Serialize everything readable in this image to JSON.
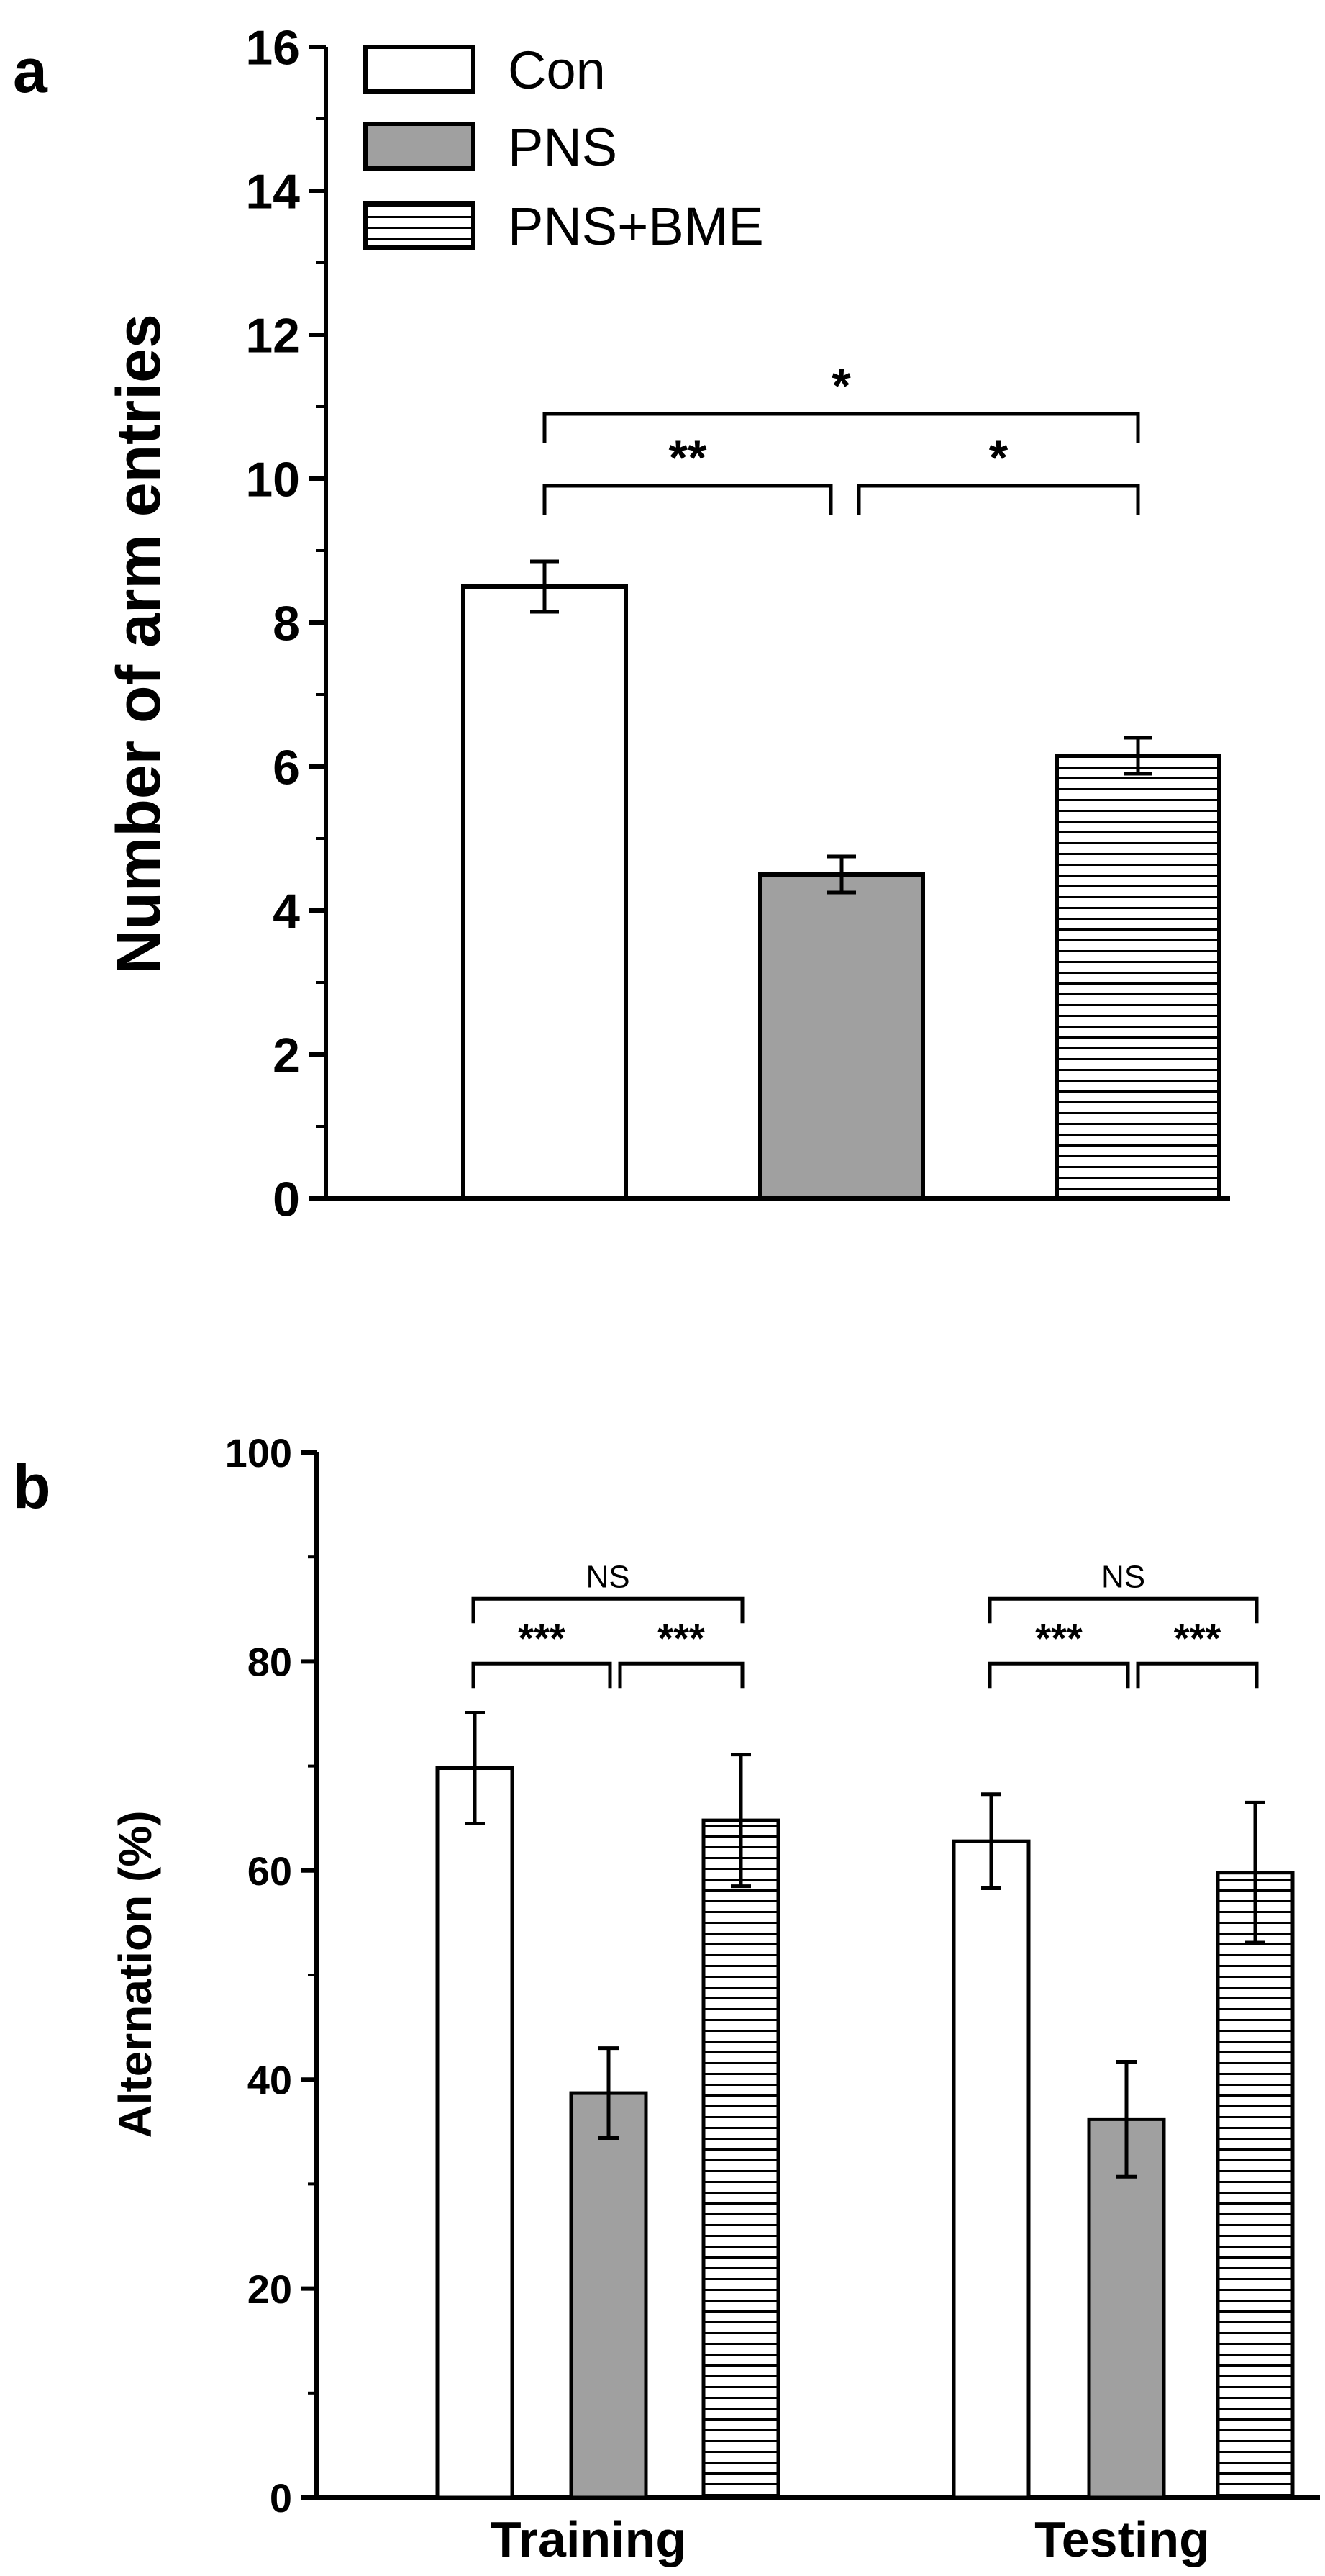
{
  "colors": {
    "con": "#ffffff",
    "pns": "#a0a0a0",
    "stripe": "#000000",
    "axis": "#000000"
  },
  "legend": [
    {
      "name": "Con",
      "pattern": "empty"
    },
    {
      "name": "PNS",
      "pattern": "gray"
    },
    {
      "name": "PNS+BME",
      "pattern": "stripes"
    }
  ],
  "chart_data": [
    {
      "panel_label": "a",
      "type": "bar",
      "ylabel": "Number of arm entries",
      "ylim": [
        0,
        16
      ],
      "yticks": [
        "0",
        "2",
        "4",
        "6",
        "8",
        "10",
        "12",
        "14",
        "16"
      ],
      "categories": [
        "Con",
        "PNS",
        "PNS+BME"
      ],
      "values": [
        8.5,
        4.5,
        6.15
      ],
      "errors": [
        0.35,
        0.25,
        0.25
      ],
      "annotations": [
        {
          "from": 0,
          "to": 1,
          "y": 9.9,
          "label": "**"
        },
        {
          "from": 1,
          "to": 2,
          "y": 9.9,
          "label": "*"
        },
        {
          "from": 0,
          "to": 2,
          "y": 10.9,
          "label": "*"
        }
      ]
    },
    {
      "panel_label": "b",
      "type": "bar",
      "ylabel": "Alternation (%)",
      "ylim": [
        0,
        100
      ],
      "yticks": [
        "0",
        "20",
        "40",
        "60",
        "80",
        "100"
      ],
      "categories": [
        "Training",
        "Testing"
      ],
      "series": [
        {
          "name": "Con",
          "values": [
            69.8,
            62.8
          ],
          "errors": [
            5.3,
            4.5
          ]
        },
        {
          "name": "PNS",
          "values": [
            38.7,
            36.2
          ],
          "errors": [
            4.3,
            5.5
          ]
        },
        {
          "name": "PNS+BME",
          "values": [
            64.8,
            59.8
          ],
          "errors": [
            6.3,
            6.7
          ]
        }
      ],
      "annotations": [
        {
          "group": 0,
          "from": 0,
          "to": 1,
          "y": 79.8,
          "label": "***"
        },
        {
          "group": 0,
          "from": 1,
          "to": 2,
          "y": 79.8,
          "label": "***"
        },
        {
          "group": 0,
          "from": 0,
          "to": 2,
          "y": 86.0,
          "label": "NS"
        },
        {
          "group": 1,
          "from": 0,
          "to": 1,
          "y": 79.8,
          "label": "***"
        },
        {
          "group": 1,
          "from": 1,
          "to": 2,
          "y": 79.8,
          "label": "***"
        },
        {
          "group": 1,
          "from": 0,
          "to": 2,
          "y": 86.0,
          "label": "NS"
        }
      ]
    }
  ]
}
